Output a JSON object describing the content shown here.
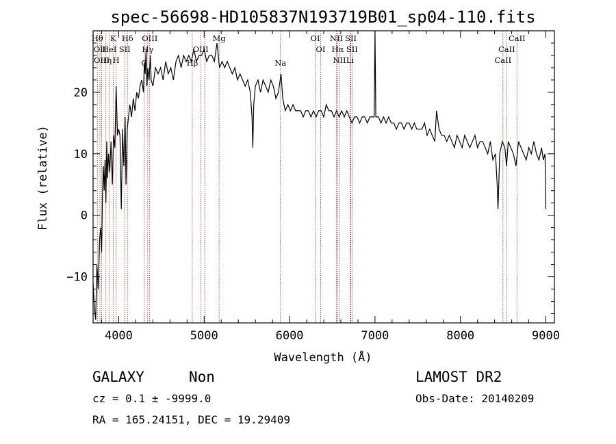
{
  "chart_data": {
    "type": "line",
    "title": "spec-56698-HD105837N193719B01_sp04-110.fits",
    "xlabel": "Wavelength (Å)",
    "ylabel": "Flux (relative)",
    "xlim": [
      3700,
      9100
    ],
    "ylim": [
      -17.5,
      30
    ],
    "x_ticks": [
      4000,
      5000,
      6000,
      7000,
      8000,
      9000
    ],
    "y_ticks": [
      -10,
      0,
      10,
      20
    ],
    "x_minor_step": 200,
    "y_minor_step": 2,
    "grid": false,
    "series": [
      {
        "color": "#000000",
        "points": [
          [
            3700,
            -11
          ],
          [
            3715,
            -15
          ],
          [
            3730,
            -17
          ],
          [
            3745,
            -8
          ],
          [
            3760,
            -12
          ],
          [
            3775,
            -4
          ],
          [
            3790,
            -2
          ],
          [
            3800,
            -6
          ],
          [
            3810,
            3
          ],
          [
            3820,
            8
          ],
          [
            3830,
            4
          ],
          [
            3840,
            9
          ],
          [
            3850,
            2
          ],
          [
            3860,
            12
          ],
          [
            3870,
            6
          ],
          [
            3880,
            10
          ],
          [
            3895,
            7
          ],
          [
            3910,
            12
          ],
          [
            3925,
            5
          ],
          [
            3940,
            13
          ],
          [
            3955,
            11
          ],
          [
            3970,
            21
          ],
          [
            3985,
            13
          ],
          [
            4000,
            14
          ],
          [
            4015,
            13
          ],
          [
            4030,
            1
          ],
          [
            4045,
            14
          ],
          [
            4060,
            8
          ],
          [
            4075,
            16
          ],
          [
            4085,
            5
          ],
          [
            4100,
            14
          ],
          [
            4115,
            16
          ],
          [
            4130,
            18
          ],
          [
            4150,
            16
          ],
          [
            4170,
            19
          ],
          [
            4190,
            17
          ],
          [
            4210,
            20
          ],
          [
            4230,
            19
          ],
          [
            4250,
            21
          ],
          [
            4270,
            22
          ],
          [
            4290,
            20
          ],
          [
            4300,
            25
          ],
          [
            4310,
            23
          ],
          [
            4320,
            27
          ],
          [
            4330,
            21
          ],
          [
            4340,
            24
          ],
          [
            4355,
            22
          ],
          [
            4370,
            26
          ],
          [
            4380,
            22
          ],
          [
            4400,
            21
          ],
          [
            4430,
            24
          ],
          [
            4460,
            23
          ],
          [
            4490,
            24
          ],
          [
            4520,
            22
          ],
          [
            4550,
            25
          ],
          [
            4580,
            23
          ],
          [
            4610,
            24
          ],
          [
            4640,
            22
          ],
          [
            4670,
            25
          ],
          [
            4700,
            26
          ],
          [
            4730,
            24
          ],
          [
            4760,
            26
          ],
          [
            4790,
            25
          ],
          [
            4820,
            26
          ],
          [
            4850,
            25
          ],
          [
            4880,
            27
          ],
          [
            4910,
            25
          ],
          [
            4940,
            26
          ],
          [
            4970,
            26
          ],
          [
            5000,
            27
          ],
          [
            5030,
            25
          ],
          [
            5060,
            26
          ],
          [
            5090,
            26
          ],
          [
            5120,
            25
          ],
          [
            5150,
            28
          ],
          [
            5180,
            24
          ],
          [
            5210,
            25
          ],
          [
            5240,
            24
          ],
          [
            5270,
            25
          ],
          [
            5300,
            24
          ],
          [
            5330,
            23
          ],
          [
            5360,
            24
          ],
          [
            5390,
            22
          ],
          [
            5420,
            23
          ],
          [
            5450,
            22
          ],
          [
            5480,
            21
          ],
          [
            5510,
            22
          ],
          [
            5540,
            20
          ],
          [
            5560,
            16
          ],
          [
            5570,
            11
          ],
          [
            5580,
            18
          ],
          [
            5600,
            21
          ],
          [
            5630,
            22
          ],
          [
            5660,
            20
          ],
          [
            5690,
            22
          ],
          [
            5720,
            21
          ],
          [
            5750,
            20
          ],
          [
            5780,
            22
          ],
          [
            5810,
            21
          ],
          [
            5840,
            19
          ],
          [
            5870,
            20
          ],
          [
            5900,
            23
          ],
          [
            5920,
            19
          ],
          [
            5950,
            17
          ],
          [
            5980,
            18
          ],
          [
            6010,
            17
          ],
          [
            6040,
            18
          ],
          [
            6070,
            17
          ],
          [
            6100,
            17
          ],
          [
            6130,
            17
          ],
          [
            6160,
            16
          ],
          [
            6190,
            17
          ],
          [
            6220,
            17
          ],
          [
            6250,
            16
          ],
          [
            6280,
            17
          ],
          [
            6310,
            16
          ],
          [
            6340,
            17
          ],
          [
            6370,
            17
          ],
          [
            6400,
            16
          ],
          [
            6430,
            18
          ],
          [
            6460,
            17
          ],
          [
            6490,
            17
          ],
          [
            6520,
            16
          ],
          [
            6550,
            17
          ],
          [
            6580,
            16
          ],
          [
            6610,
            17
          ],
          [
            6640,
            16
          ],
          [
            6670,
            17
          ],
          [
            6700,
            16
          ],
          [
            6730,
            15
          ],
          [
            6760,
            16
          ],
          [
            6790,
            16
          ],
          [
            6820,
            15
          ],
          [
            6850,
            16
          ],
          [
            6880,
            16
          ],
          [
            6910,
            15
          ],
          [
            6940,
            16
          ],
          [
            6970,
            16
          ],
          [
            6990,
            16
          ],
          [
            7000,
            30
          ],
          [
            7010,
            16
          ],
          [
            7040,
            16
          ],
          [
            7070,
            15
          ],
          [
            7100,
            16
          ],
          [
            7130,
            15
          ],
          [
            7160,
            16
          ],
          [
            7190,
            15
          ],
          [
            7220,
            15
          ],
          [
            7250,
            14
          ],
          [
            7280,
            15
          ],
          [
            7310,
            15
          ],
          [
            7340,
            14
          ],
          [
            7370,
            15
          ],
          [
            7400,
            15
          ],
          [
            7430,
            14
          ],
          [
            7460,
            15
          ],
          [
            7490,
            14
          ],
          [
            7520,
            14
          ],
          [
            7550,
            14
          ],
          [
            7580,
            15
          ],
          [
            7610,
            13
          ],
          [
            7640,
            14
          ],
          [
            7670,
            13
          ],
          [
            7700,
            12
          ],
          [
            7720,
            17
          ],
          [
            7750,
            14
          ],
          [
            7780,
            13
          ],
          [
            7810,
            13
          ],
          [
            7840,
            12
          ],
          [
            7870,
            13
          ],
          [
            7900,
            12
          ],
          [
            7930,
            11
          ],
          [
            7960,
            13
          ],
          [
            7990,
            12
          ],
          [
            8020,
            11
          ],
          [
            8050,
            13
          ],
          [
            8080,
            12
          ],
          [
            8110,
            11
          ],
          [
            8140,
            12
          ],
          [
            8170,
            13
          ],
          [
            8200,
            11
          ],
          [
            8230,
            12
          ],
          [
            8260,
            12
          ],
          [
            8290,
            11
          ],
          [
            8320,
            10
          ],
          [
            8350,
            12
          ],
          [
            8380,
            9
          ],
          [
            8410,
            10
          ],
          [
            8430,
            5
          ],
          [
            8440,
            1
          ],
          [
            8460,
            10
          ],
          [
            8490,
            12
          ],
          [
            8520,
            11
          ],
          [
            8540,
            8
          ],
          [
            8560,
            12
          ],
          [
            8590,
            11
          ],
          [
            8620,
            10
          ],
          [
            8650,
            8
          ],
          [
            8680,
            12
          ],
          [
            8710,
            11
          ],
          [
            8740,
            10
          ],
          [
            8770,
            9
          ],
          [
            8800,
            11
          ],
          [
            8830,
            10
          ],
          [
            8860,
            12
          ],
          [
            8890,
            10
          ],
          [
            8920,
            9
          ],
          [
            8950,
            11
          ],
          [
            8970,
            9
          ],
          [
            8990,
            10
          ],
          [
            9000,
            1
          ]
        ]
      }
    ],
    "spectral_lines": [
      {
        "x": 3750,
        "label": "Hθ",
        "row": 0
      },
      {
        "x": 3780,
        "label": "OII",
        "row": 1
      },
      {
        "x": 3800,
        "label": "OIII",
        "row": 2
      },
      {
        "x": 3850,
        "label": "Hη",
        "row": 2
      },
      {
        "x": 3890,
        "label": "HeI",
        "row": 1
      },
      {
        "x": 3935,
        "label": "K",
        "row": 0
      },
      {
        "x": 3970,
        "label": "H",
        "row": 2
      },
      {
        "x": 4070,
        "label": "SII",
        "row": 1
      },
      {
        "x": 4102,
        "label": "Hδ",
        "row": 0
      },
      {
        "x": 4300,
        "label": "G",
        "row": 3
      },
      {
        "x": 4340,
        "label": "Hγ",
        "row": 1
      },
      {
        "x": 4363,
        "label": "OIII",
        "row": 0
      },
      {
        "x": 4861,
        "label": "Hβ",
        "row": 3
      },
      {
        "x": 4959,
        "label": "OIII",
        "row": 1
      },
      {
        "x": 5007,
        "label": "",
        "row": 1
      },
      {
        "x": 5175,
        "label": "Mg",
        "row": 0
      },
      {
        "x": 5893,
        "label": "Na",
        "row": 3
      },
      {
        "x": 6300,
        "label": "OI",
        "row": 0
      },
      {
        "x": 6364,
        "label": "OI",
        "row": 1
      },
      {
        "x": 6548,
        "label": "NII",
        "row": 0
      },
      {
        "x": 6563,
        "label": "Hα",
        "row": 1
      },
      {
        "x": 6584,
        "label": "NII",
        "row": 2
      },
      {
        "x": 6717,
        "label": "SII",
        "row": 0
      },
      {
        "x": 6731,
        "label": "SII",
        "row": 1
      },
      {
        "x": 6708,
        "label": "Li",
        "row": 2
      },
      {
        "x": 8498,
        "label": "CaII",
        "row": 2
      },
      {
        "x": 8542,
        "label": "CaII",
        "row": 1
      },
      {
        "x": 8662,
        "label": "CaII",
        "row": 0
      }
    ]
  },
  "info": {
    "class_label": "GALAXY",
    "subclass_label": "Non",
    "survey_label": "LAMOST DR2",
    "cz_text": "cz = 0.1 ± -9999.0",
    "obs_date_text": "Obs-Date: 20140209",
    "radec_text": "RA = 165.24151, DEC =  19.29409"
  },
  "colors": {
    "spectrum": "#000000",
    "line_marker": "#a03030"
  }
}
